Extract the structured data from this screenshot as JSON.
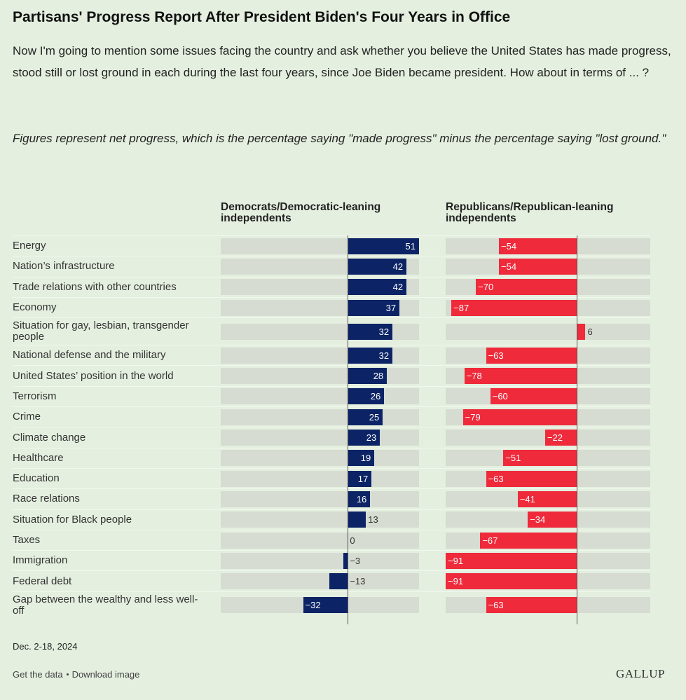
{
  "chart_data": {
    "type": "bar",
    "orientation": "horizontal",
    "title": "Partisans' Progress Report After President Biden's Four Years in Office",
    "subtitle": "Now I'm going to mention some issues facing the country and ask whether you believe the United States has made progress, stood still or lost ground in each during the last four years, since Joe Biden became president. How about in terms of ... ?",
    "note": "Figures represent net progress, which is the percentage saying \"made progress\" minus the percentage saying \"lost ground.\"",
    "date": "Dec. 2-18, 2024",
    "categories": [
      "Energy",
      "Nation’s infrastructure",
      "Trade relations with other countries",
      "Economy",
      "Situation for gay, lesbian, transgender people",
      "National defense and the military",
      "United States’ position in the world",
      "Terrorism",
      "Crime",
      "Climate change",
      "Healthcare",
      "Education",
      "Race relations",
      "Situation for Black people",
      "Taxes",
      "Immigration",
      "Federal debt",
      "Gap between the wealthy and less well-off"
    ],
    "xlim": [
      -91,
      51
    ],
    "series": [
      {
        "name": "Democrats/Democratic-leaning independents",
        "color": "#0c2466",
        "values": [
          51,
          42,
          42,
          37,
          32,
          32,
          28,
          26,
          25,
          23,
          19,
          17,
          16,
          13,
          0,
          -3,
          -13,
          -32
        ],
        "value_labels": [
          "51",
          "42",
          "42",
          "37",
          "32",
          "32",
          "28",
          "26",
          "25",
          "23",
          "19",
          "17",
          "16",
          "13",
          "0",
          "−3",
          "−13",
          "−32"
        ]
      },
      {
        "name": "Republicans/Republican-leaning independents",
        "color": "#ee2a3b",
        "values": [
          -54,
          -54,
          -70,
          -87,
          6,
          -63,
          -78,
          -60,
          -79,
          -22,
          -51,
          -63,
          -41,
          -34,
          -67,
          -91,
          -91,
          -63
        ],
        "value_labels": [
          "−54",
          "−54",
          "−70",
          "−87",
          "6",
          "−63",
          "−78",
          "−60",
          "−79",
          "−22",
          "−51",
          "−63",
          "−41",
          "−34",
          "−67",
          "−91",
          "−91",
          "−63"
        ]
      }
    ]
  },
  "footer": {
    "links": [
      "Get the data",
      "Download image"
    ],
    "brand": "GALLUP"
  }
}
